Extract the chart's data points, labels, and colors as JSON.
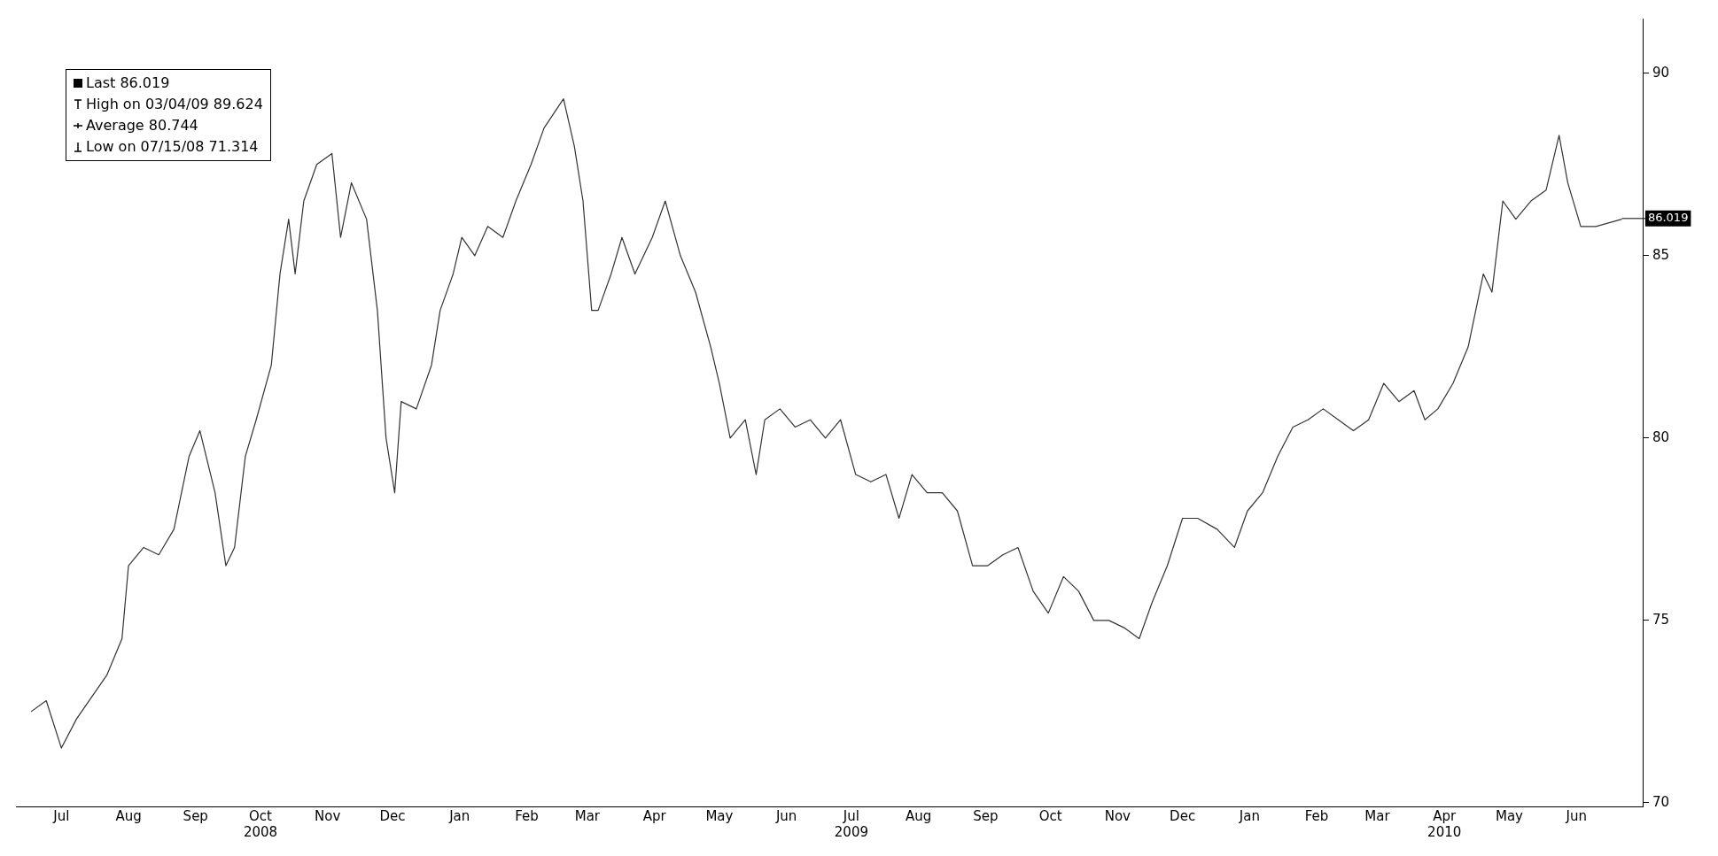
{
  "chart_data": {
    "type": "line",
    "x": [
      "2008-07-01",
      "2008-07-08",
      "2008-07-15",
      "2008-07-22",
      "2008-07-29",
      "2008-08-05",
      "2008-08-12",
      "2008-08-15",
      "2008-08-22",
      "2008-08-29",
      "2008-09-05",
      "2008-09-12",
      "2008-09-17",
      "2008-09-24",
      "2008-09-29",
      "2008-10-03",
      "2008-10-08",
      "2008-10-13",
      "2008-10-20",
      "2008-10-24",
      "2008-10-28",
      "2008-10-31",
      "2008-11-04",
      "2008-11-10",
      "2008-11-17",
      "2008-11-21",
      "2008-11-26",
      "2008-12-03",
      "2008-12-08",
      "2008-12-12",
      "2008-12-16",
      "2008-12-19",
      "2008-12-26",
      "2009-01-02",
      "2009-01-06",
      "2009-01-12",
      "2009-01-16",
      "2009-01-22",
      "2009-01-28",
      "2009-02-04",
      "2009-02-10",
      "2009-02-17",
      "2009-02-23",
      "2009-03-04",
      "2009-03-09",
      "2009-03-13",
      "2009-03-17",
      "2009-03-20",
      "2009-03-26",
      "2009-03-31",
      "2009-04-06",
      "2009-04-14",
      "2009-04-20",
      "2009-04-27",
      "2009-05-04",
      "2009-05-11",
      "2009-05-15",
      "2009-05-20",
      "2009-05-27",
      "2009-06-01",
      "2009-06-05",
      "2009-06-12",
      "2009-06-19",
      "2009-06-26",
      "2009-07-03",
      "2009-07-10",
      "2009-07-17",
      "2009-07-24",
      "2009-07-31",
      "2009-08-06",
      "2009-08-12",
      "2009-08-19",
      "2009-08-26",
      "2009-09-02",
      "2009-09-09",
      "2009-09-16",
      "2009-09-23",
      "2009-09-30",
      "2009-10-07",
      "2009-10-14",
      "2009-10-21",
      "2009-10-28",
      "2009-11-04",
      "2009-11-11",
      "2009-11-18",
      "2009-11-25",
      "2009-12-01",
      "2009-12-08",
      "2009-12-15",
      "2009-12-22",
      "2009-12-31",
      "2010-01-08",
      "2010-01-14",
      "2010-01-21",
      "2010-01-28",
      "2010-02-04",
      "2010-02-11",
      "2010-02-18",
      "2010-02-25",
      "2010-03-04",
      "2010-03-11",
      "2010-03-18",
      "2010-03-25",
      "2010-04-01",
      "2010-04-06",
      "2010-04-12",
      "2010-04-19",
      "2010-04-26",
      "2010-05-03",
      "2010-05-07",
      "2010-05-12",
      "2010-05-18",
      "2010-05-25",
      "2010-06-01",
      "2010-06-07",
      "2010-06-11",
      "2010-06-17",
      "2010-06-24",
      "2010-07-06"
    ],
    "series": [
      {
        "color": "#333333",
        "values": [
          72.5,
          72.8,
          71.5,
          72.3,
          72.9,
          73.5,
          74.5,
          76.5,
          77.0,
          76.8,
          77.5,
          79.5,
          80.2,
          78.5,
          76.5,
          77.0,
          79.5,
          80.5,
          82.0,
          84.5,
          86.0,
          84.5,
          86.5,
          87.5,
          87.8,
          85.5,
          87.0,
          86.0,
          83.5,
          80.0,
          78.5,
          81.0,
          80.8,
          82.0,
          83.5,
          84.5,
          85.5,
          85.0,
          85.8,
          85.5,
          86.5,
          87.5,
          88.5,
          89.3,
          88.0,
          86.5,
          83.5,
          83.5,
          84.5,
          85.5,
          84.5,
          85.5,
          86.5,
          85.0,
          84.0,
          82.5,
          81.5,
          80.0,
          80.5,
          79.0,
          80.5,
          80.8,
          80.3,
          80.5,
          80.0,
          80.5,
          79.0,
          78.8,
          79.0,
          77.8,
          79.0,
          78.5,
          78.5,
          78.0,
          76.5,
          76.5,
          76.8,
          77.0,
          75.8,
          75.2,
          76.2,
          75.8,
          75.0,
          75.0,
          74.8,
          74.5,
          75.5,
          76.5,
          77.8,
          77.8,
          77.5,
          77.0,
          78.0,
          78.5,
          79.5,
          80.3,
          80.5,
          80.8,
          80.5,
          80.2,
          80.5,
          81.5,
          81.0,
          81.3,
          80.5,
          80.8,
          81.5,
          82.5,
          84.5,
          84.0,
          86.5,
          86.0,
          86.5,
          86.8,
          88.3,
          87.0,
          85.8,
          85.8,
          86.0
        ]
      }
    ],
    "xlim": [
      "2008-06-24",
      "2010-07-16"
    ],
    "xticks": [
      {
        "value": "2008-07-15",
        "label": "Jul"
      },
      {
        "value": "2008-08-15",
        "label": "Aug"
      },
      {
        "value": "2008-09-15",
        "label": "Sep"
      },
      {
        "value": "2008-10-15",
        "label": "Oct\n2008"
      },
      {
        "value": "2008-11-15",
        "label": "Nov"
      },
      {
        "value": "2008-12-15",
        "label": "Dec"
      },
      {
        "value": "2009-01-15",
        "label": "Jan"
      },
      {
        "value": "2009-02-15",
        "label": "Feb"
      },
      {
        "value": "2009-03-15",
        "label": "Mar"
      },
      {
        "value": "2009-04-15",
        "label": "Apr"
      },
      {
        "value": "2009-05-15",
        "label": "May"
      },
      {
        "value": "2009-06-15",
        "label": "Jun"
      },
      {
        "value": "2009-07-15",
        "label": "Jul\n2009"
      },
      {
        "value": "2009-08-15",
        "label": "Aug"
      },
      {
        "value": "2009-09-15",
        "label": "Sep"
      },
      {
        "value": "2009-10-15",
        "label": "Oct"
      },
      {
        "value": "2009-11-15",
        "label": "Nov"
      },
      {
        "value": "2009-12-15",
        "label": "Dec"
      },
      {
        "value": "2010-01-15",
        "label": "Jan"
      },
      {
        "value": "2010-02-15",
        "label": "Feb"
      },
      {
        "value": "2010-03-15",
        "label": "Mar"
      },
      {
        "value": "2010-04-15",
        "label": "Apr\n2010"
      },
      {
        "value": "2010-05-15",
        "label": "May"
      },
      {
        "value": "2010-06-15",
        "label": "Jun"
      }
    ],
    "ylim": [
      69.9,
      91.5
    ],
    "yticks": [
      70,
      75,
      80,
      85,
      90
    ],
    "grid": false,
    "marker": "none",
    "line_style": "solid",
    "legend": false,
    "annotations": [
      "Last 86.019",
      "High on 03/04/09 89.624",
      "Average 80.744",
      "Low on 07/15/08 71.314",
      {
        "text": "86.019",
        "x": "2010-07-06",
        "y": 86.019
      }
    ]
  }
}
